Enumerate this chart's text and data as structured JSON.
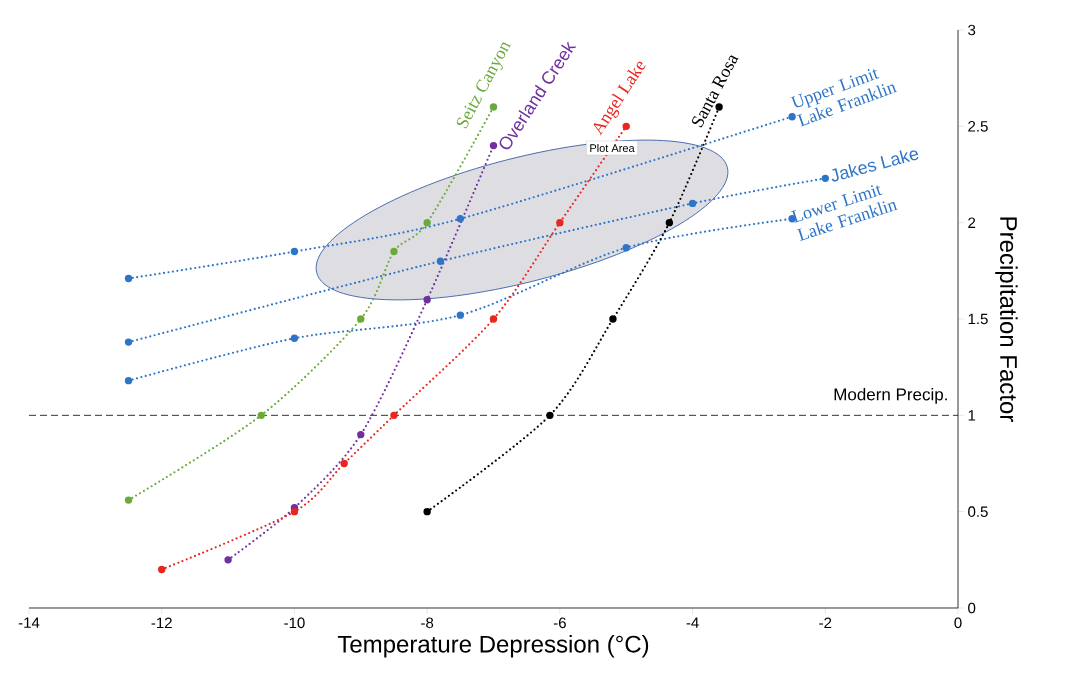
{
  "chart_data": {
    "type": "line",
    "xlabel": "Temperature Depression (°C)",
    "ylabel": "Precipitation Factor",
    "xlim": [
      -14,
      0
    ],
    "ylim": [
      0,
      3
    ],
    "xticks": [
      -14,
      -12,
      -10,
      -8,
      -6,
      -4,
      -2,
      0
    ],
    "yticks": [
      0,
      0.5,
      1,
      1.5,
      2,
      2.5,
      3
    ],
    "grid": false,
    "legend": false,
    "marker": "circle",
    "line_style": "dotted",
    "annotations": [
      "Plot Area"
    ],
    "ref_lines": [
      {
        "axis": "y",
        "value": 1,
        "label": "Modern Precip.",
        "color": "#000000",
        "line_style": "dashed"
      }
    ],
    "series": [
      {
        "name": "Upper Limit Lake Franklin",
        "color": "#2e75c8",
        "x": [
          -12.5,
          -10,
          -7.5,
          -2.5
        ],
        "values": [
          1.71,
          1.85,
          2.02,
          2.55
        ]
      },
      {
        "name": "Jakes Lake",
        "color": "#2e75c8",
        "x": [
          -12.5,
          -7.8,
          -4,
          -2
        ],
        "values": [
          1.38,
          1.8,
          2.1,
          2.23
        ]
      },
      {
        "name": "Lower Limit Lake Franklin",
        "color": "#2e75c8",
        "x": [
          -12.5,
          -10,
          -7.5,
          -5,
          -2.5
        ],
        "values": [
          1.18,
          1.4,
          1.52,
          1.87,
          2.02
        ]
      },
      {
        "name": "Seitz Canyon",
        "color": "#6aaa3a",
        "x": [
          -12.5,
          -10.5,
          -9,
          -8.5,
          -8,
          -7
        ],
        "values": [
          0.56,
          1.0,
          1.5,
          1.85,
          2.0,
          2.6
        ]
      },
      {
        "name": "Overland Creek",
        "color": "#7030a0",
        "x": [
          -11,
          -10,
          -9,
          -8,
          -7
        ],
        "values": [
          0.25,
          0.52,
          0.9,
          1.6,
          2.4
        ]
      },
      {
        "name": "Angel Lake",
        "color": "#e8261f",
        "x": [
          -12,
          -10,
          -9.25,
          -8.5,
          -7,
          -6,
          -5
        ],
        "values": [
          0.2,
          0.5,
          0.75,
          1.0,
          1.5,
          2.0,
          2.5
        ]
      },
      {
        "name": "Santa Rosa",
        "color": "#000000",
        "x": [
          -8,
          -6.15,
          -5.2,
          -4.35,
          -3.6
        ],
        "values": [
          0.5,
          1.0,
          1.5,
          2.0,
          2.6
        ]
      }
    ]
  }
}
